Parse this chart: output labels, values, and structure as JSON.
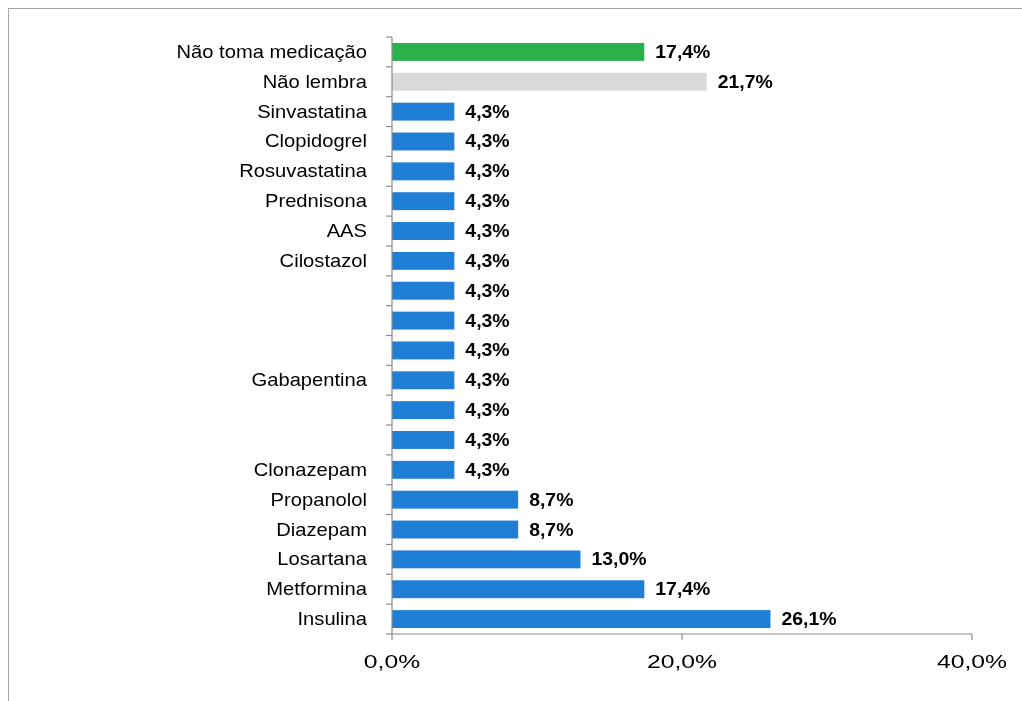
{
  "chart_data": {
    "type": "bar",
    "orientation": "horizontal",
    "categories": [
      "Não toma medicação",
      "Não lembra",
      "Sinvastatina",
      "Clopidogrel",
      "Rosuvastatina",
      "Prednisona",
      "AAS",
      "Cilostazol",
      null,
      null,
      null,
      "Gabapentina",
      null,
      null,
      "Clonazepam",
      "Propanolol",
      "Diazepam",
      "Losartana",
      "Metformina",
      "Insulina"
    ],
    "values": [
      17.4,
      21.7,
      4.3,
      4.3,
      4.3,
      4.3,
      4.3,
      4.3,
      4.3,
      4.3,
      4.3,
      4.3,
      4.3,
      4.3,
      4.3,
      8.7,
      8.7,
      13.0,
      17.4,
      26.1
    ],
    "colors": [
      "#2bb24c",
      "#d9d9d9",
      "#1f7fd6",
      "#1f7fd6",
      "#1f7fd6",
      "#1f7fd6",
      "#1f7fd6",
      "#1f7fd6",
      "#1f7fd6",
      "#1f7fd6",
      "#1f7fd6",
      "#1f7fd6",
      "#1f7fd6",
      "#1f7fd6",
      "#1f7fd6",
      "#1f7fd6",
      "#1f7fd6",
      "#1f7fd6",
      "#1f7fd6",
      "#1f7fd6"
    ],
    "value_labels": [
      "17,4%",
      "21,7%",
      "4,3%",
      "4,3%",
      "4,3%",
      "4,3%",
      "4,3%",
      "4,3%",
      "4,3%",
      "4,3%",
      "4,3%",
      "4,3%",
      "4,3%",
      "4,3%",
      "4,3%",
      "8,7%",
      "8,7%",
      "13,0%",
      "17,4%",
      "26,1%"
    ],
    "xlim": [
      0,
      40
    ],
    "xticks": [
      {
        "value": 0,
        "label": "0,0%"
      },
      {
        "value": 20,
        "label": "20,0%"
      },
      {
        "value": 40,
        "label": "40,0%"
      }
    ]
  }
}
